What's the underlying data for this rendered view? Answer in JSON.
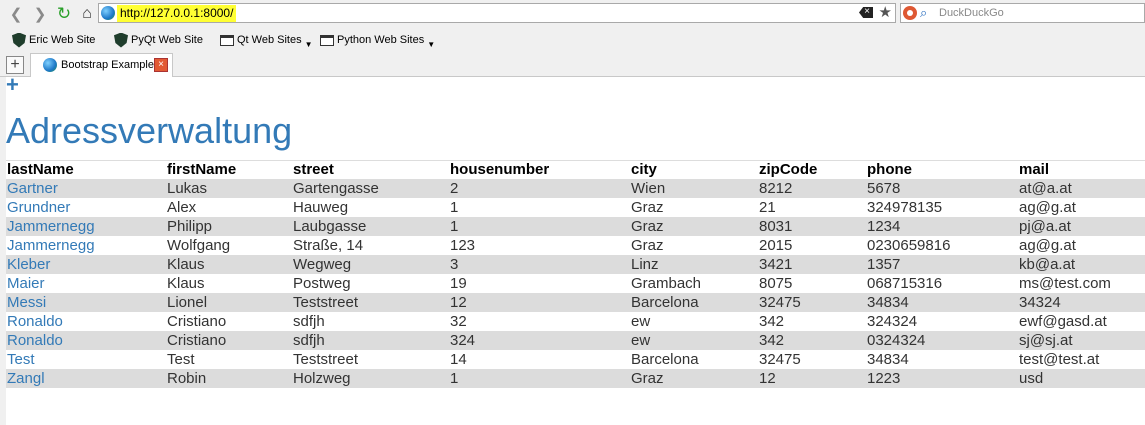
{
  "browser": {
    "url": "http://127.0.0.1:8000/",
    "search_placeholder": "DuckDuckGo",
    "bookmarks": [
      {
        "label": "Eric Web Site"
      },
      {
        "label": "PyQt Web Site"
      },
      {
        "label": "Qt Web Sites"
      },
      {
        "label": "Python Web Sites"
      }
    ],
    "tab_title": "Bootstrap Example"
  },
  "page": {
    "add_symbol": "+",
    "title": "Adressverwaltung",
    "columns": [
      "lastName",
      "firstName",
      "street",
      "housenumber",
      "city",
      "zipCode",
      "phone",
      "mail"
    ],
    "rows": [
      [
        "Gartner",
        "Lukas",
        "Gartengasse",
        "2",
        "Wien",
        "8212",
        "5678",
        "at@a.at"
      ],
      [
        "Grundner",
        "Alex",
        "Hauweg",
        "1",
        "Graz",
        "21",
        "324978135",
        "ag@g.at"
      ],
      [
        "Jammernegg",
        "Philipp",
        "Laubgasse",
        "1",
        "Graz",
        "8031",
        "1234",
        "pj@a.at"
      ],
      [
        "Jammernegg",
        "Wolfgang",
        "Straße, 14",
        "123",
        "Graz",
        "2015",
        "0230659816",
        "ag@g.at"
      ],
      [
        "Kleber",
        "Klaus",
        "Wegweg",
        "3",
        "Linz",
        "3421",
        "1357",
        "kb@a.at"
      ],
      [
        "Maier",
        "Klaus",
        "Postweg",
        "19",
        "Grambach",
        "8075",
        "068715316",
        "ms@test.com"
      ],
      [
        "Messi",
        "Lionel",
        "Teststreet",
        "12",
        "Barcelona",
        "32475",
        "34834",
        "34324"
      ],
      [
        "Ronaldo",
        "Cristiano",
        "sdfjh",
        "32",
        "ew",
        "342",
        "324324",
        "ewf@gasd.at"
      ],
      [
        "Ronaldo",
        "Cristiano",
        "sdfjh",
        "324",
        "ew",
        "342",
        "0324324",
        "sj@sj.at"
      ],
      [
        "Test",
        "Test",
        "Teststreet",
        "14",
        "Barcelona",
        "32475",
        "34834",
        "test@test.at"
      ],
      [
        "Zangl",
        "Robin",
        "Holzweg",
        "1",
        "Graz",
        "12",
        "1223",
        "usd"
      ]
    ]
  },
  "colors": {
    "link": "#337ab7",
    "stripe": "#dcdcdc",
    "url_highlight": "#ffff33"
  }
}
